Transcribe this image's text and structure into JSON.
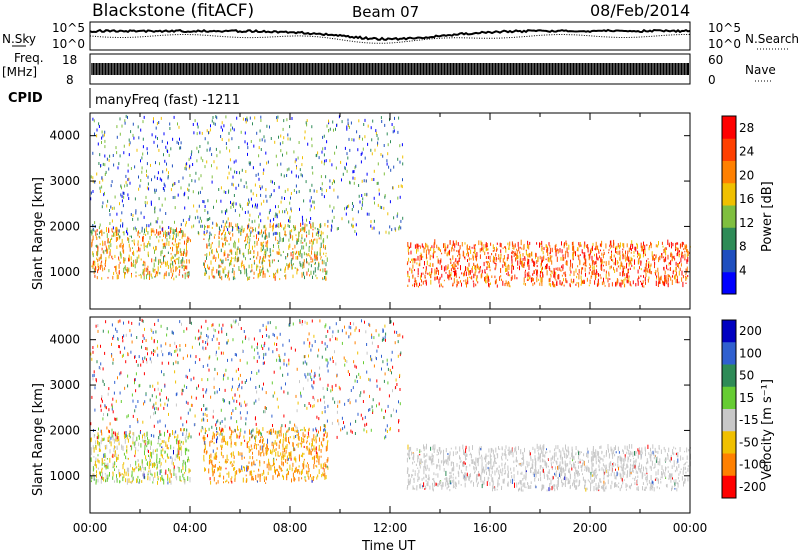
{
  "header": {
    "station": "Blackstone (fitACF)",
    "beam": "Beam 07",
    "date": "08/Feb/2014"
  },
  "strip": {
    "nsky_label": "N.Sky",
    "nsearch_label": "N.Search",
    "nsky_ticks": [
      "10^5",
      "10^0"
    ],
    "nsearch_ticks": [
      "10^5",
      "10^0"
    ],
    "freq_label_line1": "Freq.",
    "freq_label_line2": "[MHz]",
    "freq_ticks": [
      "18",
      "8"
    ],
    "nave_label": "Nave",
    "nave_ticks": [
      "60",
      "0"
    ],
    "cpid_label": "CPID",
    "cpid_text": "manyFreq (fast) -1211"
  },
  "chart_data": [
    {
      "type": "heatmap",
      "title": "",
      "quantity": "Power",
      "xlabel": "",
      "ylabel": "Slant Range [km]",
      "colorbar_label": "Power [dB]",
      "colorbar_ticks": [
        4,
        8,
        12,
        16,
        20,
        24,
        28
      ],
      "colorbar_range": [
        0,
        30
      ],
      "xlim": [
        0,
        24
      ],
      "ylim": [
        180,
        4500
      ],
      "y_ticks": [
        1000,
        2000,
        3000,
        4000
      ],
      "x_tick_labels": [
        "00:00",
        "04:00",
        "08:00",
        "12:00",
        "16:00",
        "20:00",
        "00:00"
      ],
      "colors": [
        "#0000ff",
        "#1f4fbf",
        "#2e8b57",
        "#7fbf3f",
        "#f0c000",
        "#ff8000",
        "#ff4000",
        "#ff0000"
      ],
      "features": [
        {
          "region": "00:00-04:00",
          "range_km": [
            800,
            1900
          ],
          "power_db": [
            10,
            26
          ]
        },
        {
          "region": "04:30-09:30",
          "range_km": [
            800,
            2000
          ],
          "power_db": [
            8,
            24
          ]
        },
        {
          "region": "12:40-24:00",
          "range_km": [
            650,
            1600
          ],
          "power_db": [
            16,
            30
          ]
        }
      ]
    },
    {
      "type": "heatmap",
      "title": "",
      "quantity": "Velocity",
      "xlabel": "Time UT",
      "ylabel": "Slant Range [km]",
      "colorbar_label": "Velocity [m s⁻¹]",
      "colorbar_ticks": [
        "200",
        "100",
        "50",
        "15",
        "-15",
        "-50",
        "-100",
        "-200"
      ],
      "colorbar_range": [
        -250,
        250
      ],
      "xlim": [
        0,
        24
      ],
      "ylim": [
        180,
        4500
      ],
      "y_ticks": [
        1000,
        2000,
        3000,
        4000
      ],
      "x_tick_labels": [
        "00:00",
        "04:00",
        "08:00",
        "12:00",
        "16:00",
        "20:00",
        "00:00"
      ],
      "colors": [
        "#0000c0",
        "#3060d0",
        "#2e8b57",
        "#66cc33",
        "#c8c8c8",
        "#f0c000",
        "#ff8000",
        "#ff0000"
      ],
      "features": [
        {
          "region": "00:00-04:00",
          "range_km": [
            800,
            1900
          ],
          "velocity_ms": [
            -50,
            50
          ]
        },
        {
          "region": "04:30-09:30",
          "range_km": [
            800,
            2000
          ],
          "velocity_ms": [
            -100,
            -15
          ]
        },
        {
          "region": "12:40-24:00",
          "range_km": [
            650,
            1600
          ],
          "velocity_ms": [
            -15,
            15
          ]
        }
      ]
    }
  ]
}
